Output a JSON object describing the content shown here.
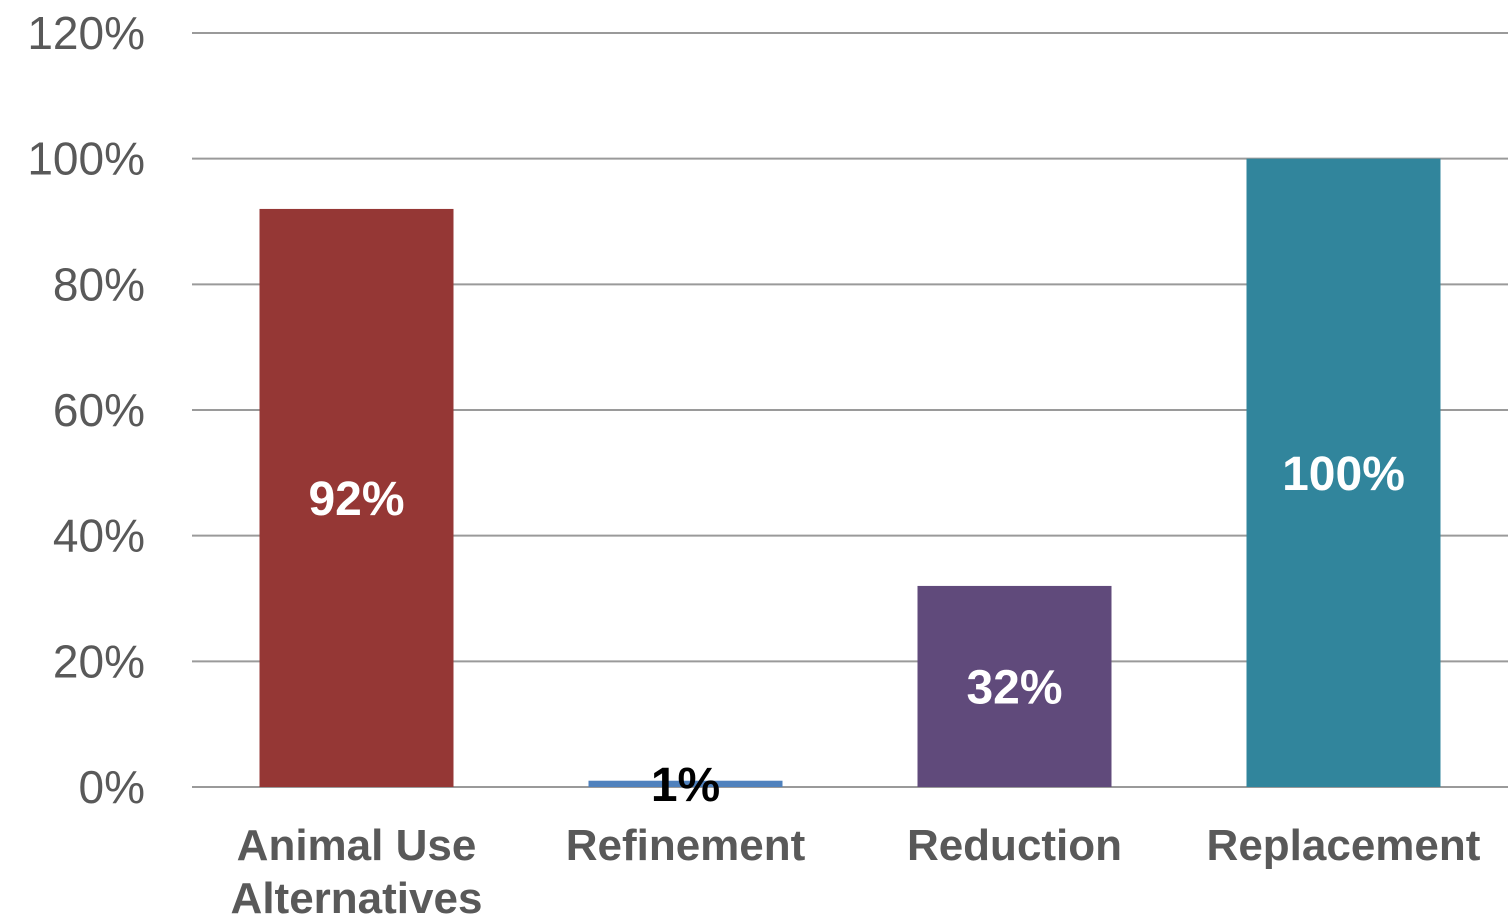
{
  "chart_data": {
    "type": "bar",
    "categories": [
      "Animal Use Alternatives",
      "Refinement",
      "Reduction",
      "Replacement"
    ],
    "category_lines": [
      [
        "Animal Use",
        "Alternatives"
      ],
      [
        "Refinement"
      ],
      [
        "Reduction"
      ],
      [
        "Replacement"
      ]
    ],
    "values": [
      92,
      1,
      32,
      100
    ],
    "data_labels": [
      "92%",
      "1%",
      "32%",
      "100%"
    ],
    "colors": [
      "#953735",
      "#4f81bd",
      "#604a7b",
      "#31859c"
    ],
    "data_label_colors": [
      "#ffffff",
      "#000000",
      "#ffffff",
      "#ffffff"
    ],
    "ylim": [
      0,
      120
    ],
    "yticks": [
      0,
      20,
      40,
      60,
      80,
      100,
      120
    ],
    "ytick_labels": [
      "0%",
      "20%",
      "40%",
      "60%",
      "80%",
      "100%",
      "120%"
    ],
    "grid": true,
    "title": "",
    "xlabel": "",
    "ylabel": ""
  }
}
